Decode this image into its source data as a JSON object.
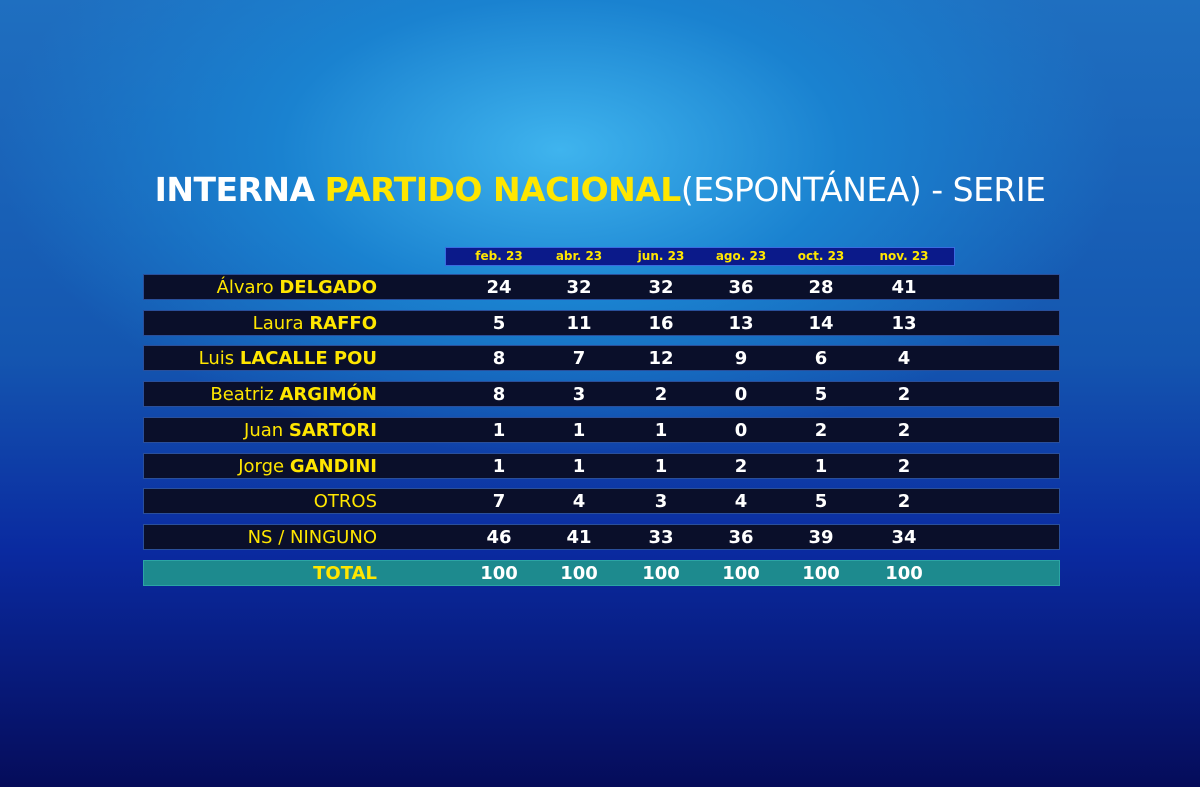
{
  "title": {
    "part1": "INTERNA",
    "part2": "PARTIDO NACIONAL",
    "part3": "(ESPONTÁNEA) - SERIE"
  },
  "table": {
    "columns": [
      "feb. 23",
      "abr. 23",
      "jun. 23",
      "ago. 23",
      "oct. 23",
      "nov. 23"
    ],
    "rows": [
      {
        "first": "Álvaro",
        "last": "DELGADO",
        "values": [
          24,
          32,
          32,
          36,
          28,
          41
        ]
      },
      {
        "first": "Laura",
        "last": "RAFFO",
        "values": [
          5,
          11,
          16,
          13,
          14,
          13
        ]
      },
      {
        "first": "Luis",
        "last": "LACALLE POU",
        "values": [
          8,
          7,
          12,
          9,
          6,
          4
        ]
      },
      {
        "first": "Beatriz",
        "last": "ARGIMÓN",
        "values": [
          8,
          3,
          2,
          0,
          5,
          2
        ]
      },
      {
        "first": "Juan",
        "last": "SARTORI",
        "values": [
          1,
          1,
          1,
          0,
          2,
          2
        ]
      },
      {
        "first": "Jorge",
        "last": "GANDINI",
        "values": [
          1,
          1,
          1,
          2,
          1,
          2
        ]
      },
      {
        "label": "OTROS",
        "values": [
          7,
          4,
          3,
          4,
          5,
          2
        ]
      },
      {
        "label": "NS / NINGUNO",
        "values": [
          46,
          41,
          33,
          36,
          39,
          34
        ]
      }
    ],
    "total": {
      "label": "TOTAL",
      "values": [
        100,
        100,
        100,
        100,
        100,
        100
      ]
    }
  }
}
